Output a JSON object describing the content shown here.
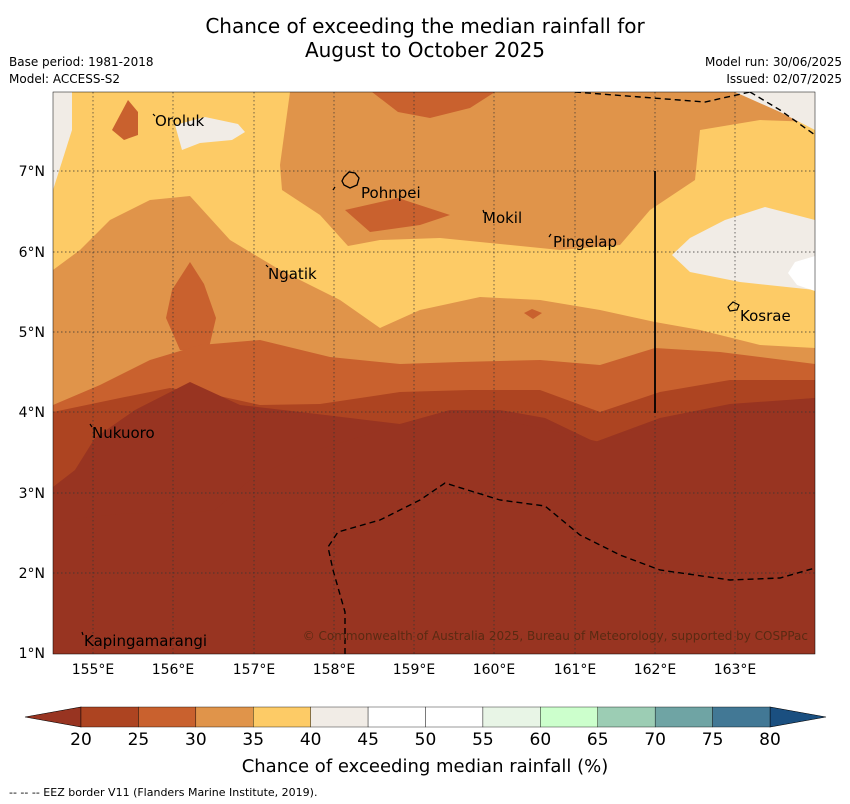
{
  "title": {
    "line1": "Chance of exceeding the median rainfall for",
    "line2": "August to October 2025"
  },
  "meta": {
    "base_period": "Base period: 1981-2018",
    "model": "Model: ACCESS-S2",
    "model_run": "Model run: 30/06/2025",
    "issued": "Issued: 02/07/2025"
  },
  "map": {
    "lon_range": [
      154.5,
      164.0
    ],
    "lat_range": [
      1.0,
      8.0
    ],
    "lon_ticks": [
      "155°E",
      "156°E",
      "157°E",
      "158°E",
      "159°E",
      "160°E",
      "161°E",
      "162°E",
      "163°E"
    ],
    "lat_ticks": [
      "1°N",
      "2°N",
      "3°N",
      "4°N",
      "5°N",
      "6°N",
      "7°N"
    ],
    "places": [
      {
        "name": "Oroluk"
      },
      {
        "name": "Pohnpei"
      },
      {
        "name": "Mokil"
      },
      {
        "name": "Pingelap"
      },
      {
        "name": "Ngatik"
      },
      {
        "name": "Kosrae"
      },
      {
        "name": "Nukuoro"
      },
      {
        "name": "Kapingamarangi"
      }
    ],
    "copyright": "© Commonwealth of Australia 2025, Bureau of Meteorology, supported by COSPPac"
  },
  "colorbar": {
    "ticks": [
      "20",
      "25",
      "30",
      "35",
      "40",
      "45",
      "50",
      "55",
      "60",
      "65",
      "70",
      "75",
      "80"
    ],
    "colors": [
      "#ad4421",
      "#c9612e",
      "#e0944a",
      "#fdcb66",
      "#f1ece6",
      "#ffffff",
      "#ffffff",
      "#e8f5e6",
      "#ccffcc",
      "#9ccdb4",
      "#6fa4a4",
      "#427895"
    ],
    "under_color": "#983421",
    "over_color": "#1a4f80",
    "label": "Chance of exceeding median rainfall (%)"
  },
  "footnote": "--  --  -- EEZ border V11 (Flanders Marine Institute, 2019)."
}
